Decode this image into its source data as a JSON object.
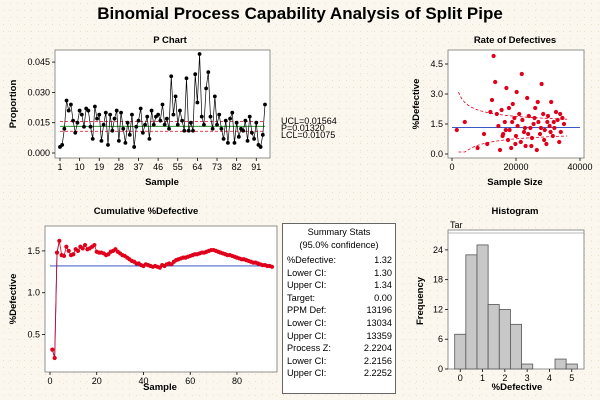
{
  "title": "Binomial Process Capability Analysis of Split Pipe",
  "p_chart": {
    "title": "P Chart",
    "xlabel": "Sample",
    "ylabel": "Proportion",
    "xticks": [
      "1",
      "10",
      "19",
      "28",
      "37",
      "46",
      "55",
      "64",
      "73",
      "82",
      "91"
    ],
    "yticks": [
      "0.000",
      "0.015",
      "0.030",
      "0.045"
    ],
    "ucl_label": "UCL=0.01564",
    "center_label": "P=0.01320",
    "lcl_label": "LCL=0.01075"
  },
  "rate_chart": {
    "title": "Rate of Defectives",
    "xlabel": "Sample Size",
    "ylabel": "%Defective",
    "xticks": [
      "0",
      "20000",
      "40000"
    ],
    "yticks": [
      "0.0",
      "1.5",
      "3.0",
      "4.5"
    ]
  },
  "cum_chart": {
    "title": "Cumulative %Defective",
    "xlabel": "Sample",
    "ylabel": "%Defective",
    "xticks": [
      "0",
      "20",
      "40",
      "60",
      "80"
    ],
    "yticks": [
      "0.5",
      "1.0",
      "1.5"
    ]
  },
  "hist_chart": {
    "title": "Histogram",
    "corner_label": "Tar",
    "xlabel": "%Defective",
    "ylabel": "Frequency",
    "xticks": [
      "0",
      "1",
      "2",
      "3",
      "4",
      "5"
    ],
    "yticks": [
      "0",
      "6",
      "12",
      "18",
      "24"
    ]
  },
  "summary": {
    "title": "Summary Stats",
    "subtitle": "(95.0% confidence)",
    "rows": [
      {
        "label": "%Defective:",
        "value": "1.32"
      },
      {
        "label": "Lower CI:",
        "value": "1.30"
      },
      {
        "label": "Upper CI:",
        "value": "1.34"
      },
      {
        "label": "Target:",
        "value": "0.00"
      },
      {
        "label": "PPM Def:",
        "value": "13196"
      },
      {
        "label": "Lower CI:",
        "value": "13034"
      },
      {
        "label": "Upper CI:",
        "value": "13359"
      },
      {
        "label": "Process Z:",
        "value": "2.2204"
      },
      {
        "label": "Lower CI:",
        "value": "2.2156"
      },
      {
        "label": "Upper CI:",
        "value": "2.2252"
      }
    ]
  },
  "colors": {
    "point": "#000000",
    "red": "#e0001b",
    "blue": "#1f3fbf",
    "green": "#0a8a0a",
    "bar": "#c8c8c8"
  },
  "chart_data": [
    {
      "type": "line",
      "title": "P Chart",
      "xlabel": "Sample",
      "ylabel": "Proportion",
      "xlim": [
        1,
        95
      ],
      "ylim": [
        0,
        0.049
      ],
      "ucl": 0.01564,
      "center": 0.0132,
      "lcl": 0.01075,
      "x_start": 1,
      "values": [
        0.003,
        0.004,
        0.012,
        0.026,
        0.021,
        0.024,
        0.016,
        0.01,
        0.015,
        0.021,
        0.019,
        0.013,
        0.022,
        0.021,
        0.013,
        0.007,
        0.023,
        0.017,
        0.019,
        0.006,
        0.014,
        0.02,
        0.004,
        0.019,
        0.011,
        0.017,
        0.021,
        0.006,
        0.02,
        0.012,
        0.005,
        0.015,
        0.009,
        0.019,
        0.003,
        0.013,
        0.016,
        0.022,
        0.01,
        0.014,
        0.018,
        0.007,
        0.021,
        0.014,
        0.018,
        0.019,
        0.016,
        0.024,
        0.014,
        0.017,
        0.012,
        0.038,
        0.019,
        0.028,
        0.014,
        0.021,
        0.016,
        0.011,
        0.037,
        0.011,
        0.015,
        0.011,
        0.039,
        0.025,
        0.049,
        0.018,
        0.014,
        0.032,
        0.04,
        0.018,
        0.012,
        0.028,
        0.014,
        0.019,
        0.012,
        0.007,
        0.016,
        0.005,
        0.017,
        0.02,
        0.005,
        0.015,
        0.008,
        0.012,
        0.011,
        0.016,
        0.006,
        0.018,
        0.01,
        0.007,
        0.015,
        0.004,
        0.003,
        0.009,
        0.024
      ]
    },
    {
      "type": "scatter",
      "title": "Rate of Defectives",
      "xlabel": "Sample Size",
      "ylabel": "%Defective",
      "xlim": [
        0,
        40000
      ],
      "ylim": [
        0,
        5
      ],
      "center": 1.32,
      "points": [
        [
          1500,
          1.2
        ],
        [
          4000,
          1.6
        ],
        [
          8000,
          0.3
        ],
        [
          10000,
          1.0
        ],
        [
          11000,
          0.5
        ],
        [
          12000,
          2.1
        ],
        [
          13000,
          4.9
        ],
        [
          13500,
          3.6
        ],
        [
          14000,
          2.0
        ],
        [
          14500,
          1.4
        ],
        [
          15000,
          0.2
        ],
        [
          15500,
          2.2
        ],
        [
          16000,
          1.0
        ],
        [
          16500,
          1.6
        ],
        [
          17000,
          3.3
        ],
        [
          17500,
          0.7
        ],
        [
          18000,
          1.2
        ],
        [
          18500,
          0.3
        ],
        [
          19000,
          2.5
        ],
        [
          19500,
          1.8
        ],
        [
          20000,
          0.9
        ],
        [
          20500,
          1.4
        ],
        [
          21000,
          2.0
        ],
        [
          21500,
          0.6
        ],
        [
          22000,
          1.7
        ],
        [
          22500,
          1.1
        ],
        [
          23000,
          0.4
        ],
        [
          23500,
          2.8
        ],
        [
          24000,
          1.9
        ],
        [
          24500,
          1.3
        ],
        [
          25000,
          0.8
        ],
        [
          25500,
          1.5
        ],
        [
          26000,
          2.3
        ],
        [
          26500,
          0.2
        ],
        [
          27000,
          1.6
        ],
        [
          27500,
          1.0
        ],
        [
          28000,
          3.5
        ],
        [
          28500,
          2.0
        ],
        [
          29000,
          1.2
        ],
        [
          29500,
          0.5
        ],
        [
          30000,
          1.9
        ],
        [
          30500,
          1.4
        ],
        [
          31000,
          2.6
        ],
        [
          31500,
          0.9
        ],
        [
          32000,
          1.3
        ],
        [
          32500,
          2.1
        ],
        [
          33000,
          1.7
        ],
        [
          33500,
          0.6
        ],
        [
          34000,
          1.1
        ],
        [
          34500,
          1.8
        ],
        [
          35000,
          1.5
        ],
        [
          12500,
          2.7
        ],
        [
          15800,
          0.9
        ],
        [
          17800,
          2.3
        ],
        [
          20200,
          3.1
        ],
        [
          22800,
          1.3
        ],
        [
          24800,
          0.4
        ],
        [
          26800,
          2.6
        ],
        [
          28800,
          0.7
        ],
        [
          30800,
          1.1
        ],
        [
          21800,
          4.0
        ],
        [
          23800,
          1.0
        ],
        [
          25800,
          1.8
        ],
        [
          27800,
          1.3
        ],
        [
          18800,
          1.6
        ],
        [
          16800,
          1.2
        ],
        [
          19800,
          0.5
        ],
        [
          31800,
          1.6
        ],
        [
          33800,
          2.0
        ],
        [
          29800,
          1.6
        ]
      ]
    },
    {
      "type": "line",
      "title": "Cumulative %Defective",
      "xlabel": "Sample",
      "ylabel": "%Defective",
      "xlim": [
        0,
        95
      ],
      "ylim": [
        0.1,
        1.75
      ],
      "center": 1.32,
      "x_start": 1,
      "values": [
        0.32,
        0.22,
        1.48,
        1.62,
        1.45,
        1.44,
        1.55,
        1.5,
        1.45,
        1.46,
        1.52,
        1.5,
        1.55,
        1.53,
        1.57,
        1.52,
        1.53,
        1.55,
        1.57,
        1.49,
        1.48,
        1.48,
        1.47,
        1.45,
        1.46,
        1.49,
        1.5,
        1.52,
        1.49,
        1.47,
        1.45,
        1.44,
        1.42,
        1.4,
        1.38,
        1.37,
        1.35,
        1.35,
        1.33,
        1.32,
        1.34,
        1.33,
        1.32,
        1.31,
        1.32,
        1.31,
        1.3,
        1.33,
        1.32,
        1.34,
        1.35,
        1.34,
        1.37,
        1.39,
        1.4,
        1.41,
        1.42,
        1.42,
        1.43,
        1.44,
        1.45,
        1.46,
        1.46,
        1.47,
        1.48,
        1.48,
        1.49,
        1.5,
        1.51,
        1.51,
        1.5,
        1.49,
        1.48,
        1.47,
        1.46,
        1.45,
        1.45,
        1.44,
        1.43,
        1.42,
        1.41,
        1.4,
        1.4,
        1.39,
        1.38,
        1.37,
        1.36,
        1.36,
        1.35,
        1.34,
        1.33,
        1.33,
        1.32,
        1.32,
        1.31
      ]
    },
    {
      "type": "bar",
      "title": "Histogram",
      "xlabel": "%Defective",
      "ylabel": "Frequency",
      "ylim": [
        0,
        27
      ],
      "bin_edges": [
        -0.25,
        0.25,
        0.75,
        1.25,
        1.75,
        2.25,
        2.75,
        3.25,
        3.75,
        4.25,
        4.75,
        5.25
      ],
      "values": [
        7,
        23,
        25,
        13,
        12,
        9,
        1,
        0,
        0,
        2,
        1
      ]
    }
  ]
}
